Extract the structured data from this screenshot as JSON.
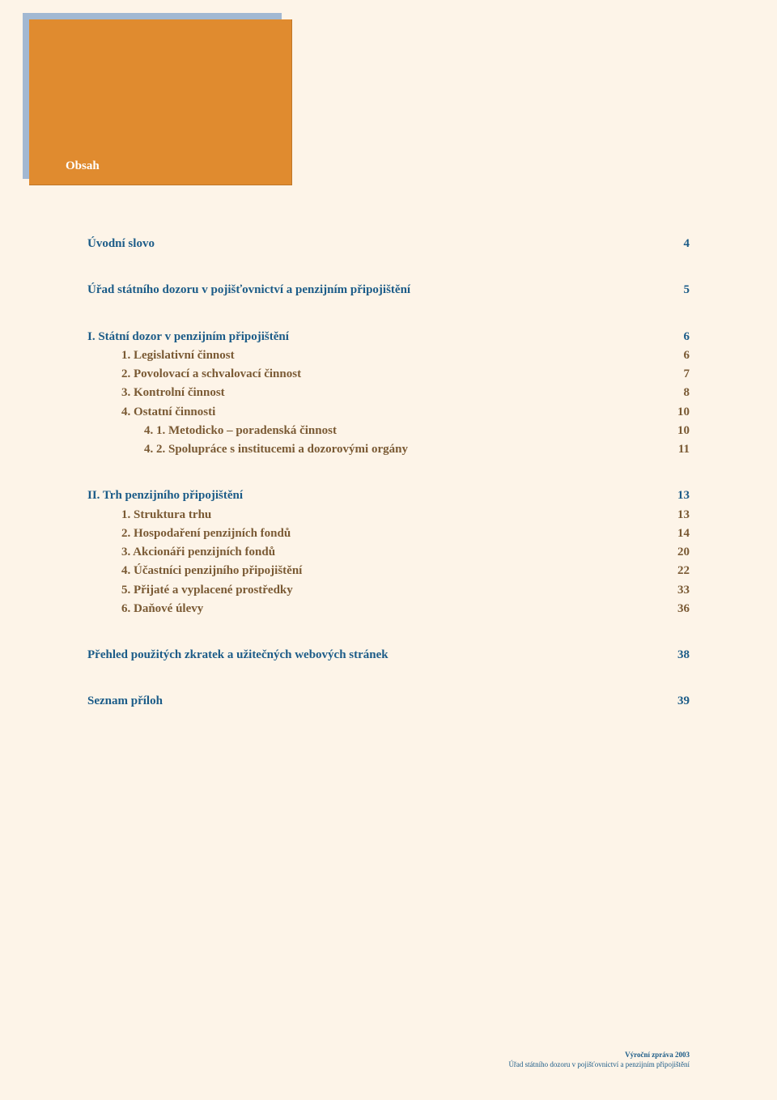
{
  "colors": {
    "page_bg": "#fdf4e8",
    "tab_outer": "#a2b8d2",
    "tab_inner": "#e08b2f",
    "heading_blue": "#1c5c88",
    "body_brown": "#7a5a34",
    "tab_text": "#ffffff"
  },
  "typography": {
    "body_fontsize": 15,
    "tab_fontsize": 15,
    "footer_fontsize": 9,
    "font_family": "Georgia, serif"
  },
  "tab": {
    "label": "Obsah"
  },
  "toc": {
    "uvodni": {
      "label": "Úvodní slovo",
      "page": "4"
    },
    "urad": {
      "label": "Úřad státního dozoru v pojišťovnictví a penzijním připojištění",
      "page": "5"
    },
    "sec1": {
      "title": {
        "label": "I. Státní dozor v penzijním připojištění",
        "page": "6"
      },
      "i1": {
        "label": "1. Legislativní činnost",
        "page": "6"
      },
      "i2": {
        "label": "2. Povolovací a schvalovací činnost",
        "page": "7"
      },
      "i3": {
        "label": "3. Kontrolní činnost",
        "page": "8"
      },
      "i4": {
        "label": "4. Ostatní činnosti",
        "page": "10"
      },
      "i41": {
        "label": "4. 1. Metodicko – poradenská činnost",
        "page": "10"
      },
      "i42": {
        "label": "4. 2. Spolupráce s institucemi a dozorovými orgány",
        "page": "11"
      }
    },
    "sec2": {
      "title": {
        "label": "II. Trh penzijního připojištění",
        "page": "13"
      },
      "i1": {
        "label": "1. Struktura trhu",
        "page": "13"
      },
      "i2": {
        "label": "2. Hospodaření penzijních fondů",
        "page": "14"
      },
      "i3": {
        "label": "3. Akcionáři penzijních fondů",
        "page": "20"
      },
      "i4": {
        "label": "4. Účastníci penzijního připojištění",
        "page": "22"
      },
      "i5": {
        "label": "5. Přijaté a vyplacené prostředky",
        "page": "33"
      },
      "i6": {
        "label": "6. Daňové úlevy",
        "page": "36"
      }
    },
    "prehled": {
      "label": "Přehled použitých zkratek a užitečných webových stránek",
      "page": "38"
    },
    "seznam": {
      "label": "Seznam příloh",
      "page": "39"
    }
  },
  "footer": {
    "line1": "Výroční zpráva 2003",
    "line2": "Úřad státního dozoru v pojišťovnictví a penzijním připojištění"
  }
}
